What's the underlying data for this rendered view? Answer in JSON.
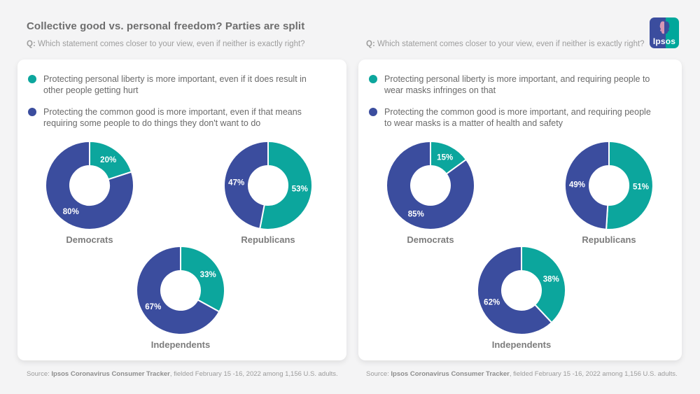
{
  "page": {
    "title": "Collective good vs. personal freedom? Parties are split",
    "question_prefix": "Q:",
    "question": "Which statement comes closer to your view, even if neither is exactly right?",
    "logo_text": "Ipsos"
  },
  "colors": {
    "teal": "#0ca69d",
    "blue": "#3b4d9e",
    "label_text": "#ffffff"
  },
  "source": {
    "prefix": "Source: ",
    "tracker": "Ipsos Coronavirus Consumer Tracker",
    "rest": ", fielded February 15 -16, 2022 among 1,156 U.S. adults."
  },
  "chart_data": [
    {
      "type": "pie",
      "panel": "left",
      "title": "Collective good vs. personal freedom? Parties are split",
      "question": "Q: Which statement comes closer to your view, even if neither is exactly right?",
      "legend": [
        {
          "name": "personal-liberty",
          "color": "#0ca69d",
          "label": "Protecting personal liberty is more important, even if it does result in other people getting hurt"
        },
        {
          "name": "common-good",
          "color": "#3b4d9e",
          "label": "Protecting the common good is more important, even if that means requiring some people to do things they don't want to do"
        }
      ],
      "donuts": [
        {
          "category": "Democrats",
          "values": [
            {
              "series": "personal-liberty",
              "pct": 20
            },
            {
              "series": "common-good",
              "pct": 80
            }
          ]
        },
        {
          "category": "Republicans",
          "values": [
            {
              "series": "personal-liberty",
              "pct": 53
            },
            {
              "series": "common-good",
              "pct": 47
            }
          ]
        },
        {
          "category": "Independents",
          "values": [
            {
              "series": "personal-liberty",
              "pct": 33
            },
            {
              "series": "common-good",
              "pct": 67
            }
          ]
        }
      ],
      "source": "Source: Ipsos Coronavirus Consumer Tracker, fielded February 15 -16, 2022 among 1,156 U.S. adults."
    },
    {
      "type": "pie",
      "panel": "right",
      "title": "Collective good vs. personal freedom? Parties are split",
      "question": "Q: Which statement comes closer to your view, even if neither is exactly right?",
      "legend": [
        {
          "name": "personal-liberty",
          "color": "#0ca69d",
          "label": "Protecting personal liberty is more important, and requiring people to wear masks infringes on that"
        },
        {
          "name": "common-good",
          "color": "#3b4d9e",
          "label": "Protecting the common good is more important, and requiring people to wear masks is a matter of health and safety"
        }
      ],
      "donuts": [
        {
          "category": "Democrats",
          "values": [
            {
              "series": "personal-liberty",
              "pct": 15
            },
            {
              "series": "common-good",
              "pct": 85
            }
          ]
        },
        {
          "category": "Republicans",
          "values": [
            {
              "series": "personal-liberty",
              "pct": 51
            },
            {
              "series": "common-good",
              "pct": 49
            }
          ]
        },
        {
          "category": "Independents",
          "values": [
            {
              "series": "personal-liberty",
              "pct": 38
            },
            {
              "series": "common-good",
              "pct": 62
            }
          ]
        }
      ],
      "source": "Source: Ipsos Coronavirus Consumer Tracker, fielded February 15 -16, 2022 among 1,156 U.S. adults."
    }
  ]
}
